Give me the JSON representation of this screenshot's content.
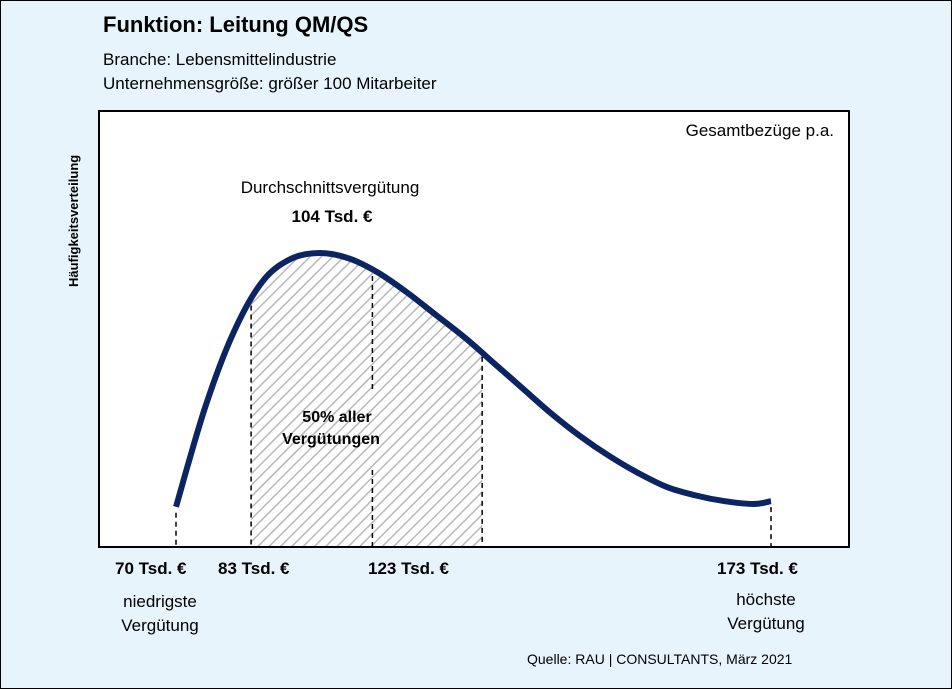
{
  "title": "Funktion: Leitung QM/QS",
  "subtitle_1": "Branche: Lebensmittelindustrie",
  "subtitle_2": "Unternehmensgröße: größer 100 Mitarbeiter",
  "y_axis_label": "Häufigkeitsverteilung",
  "source": "Quelle: RAU | CONSULTANTS, März 2021",
  "chart_data": {
    "type": "area",
    "box_label": "Gesamtbezüge p.a.",
    "ylabel": "Häufigkeitsverteilung",
    "xlabel": "",
    "x_unit": "Tsd. €",
    "grid": false,
    "curve_color": "#0d2463",
    "shade_color": "#b8b8b8",
    "series": [
      {
        "x": [
          70,
          75,
          80,
          85,
          90,
          95,
          100,
          105,
          110,
          115,
          120,
          125,
          130,
          135,
          140,
          145,
          150,
          155,
          160,
          165,
          170,
          173
        ],
        "y": [
          0.1,
          0.45,
          0.72,
          0.9,
          0.98,
          1.0,
          0.98,
          0.93,
          0.86,
          0.78,
          0.7,
          0.61,
          0.52,
          0.43,
          0.35,
          0.28,
          0.22,
          0.17,
          0.14,
          0.12,
          0.11,
          0.12
        ]
      }
    ],
    "markers": [
      {
        "value": 70,
        "label": "70 Tsd. €",
        "desc_1": "niedrigste",
        "desc_2": "Vergütung"
      },
      {
        "value": 83,
        "label": "83 Tsd. €"
      },
      {
        "value": 104,
        "label": "Durchschnittsvergütung",
        "value_label": "104 Tsd. €"
      },
      {
        "value": 123,
        "label": "123 Tsd. €"
      },
      {
        "value": 173,
        "label": "173 Tsd. €",
        "desc_1": "höchste",
        "desc_2": "Vergütung"
      }
    ],
    "shaded_range": [
      83,
      123
    ],
    "shaded_label_1": "50% aller",
    "shaded_label_2": "Vergütungen"
  }
}
